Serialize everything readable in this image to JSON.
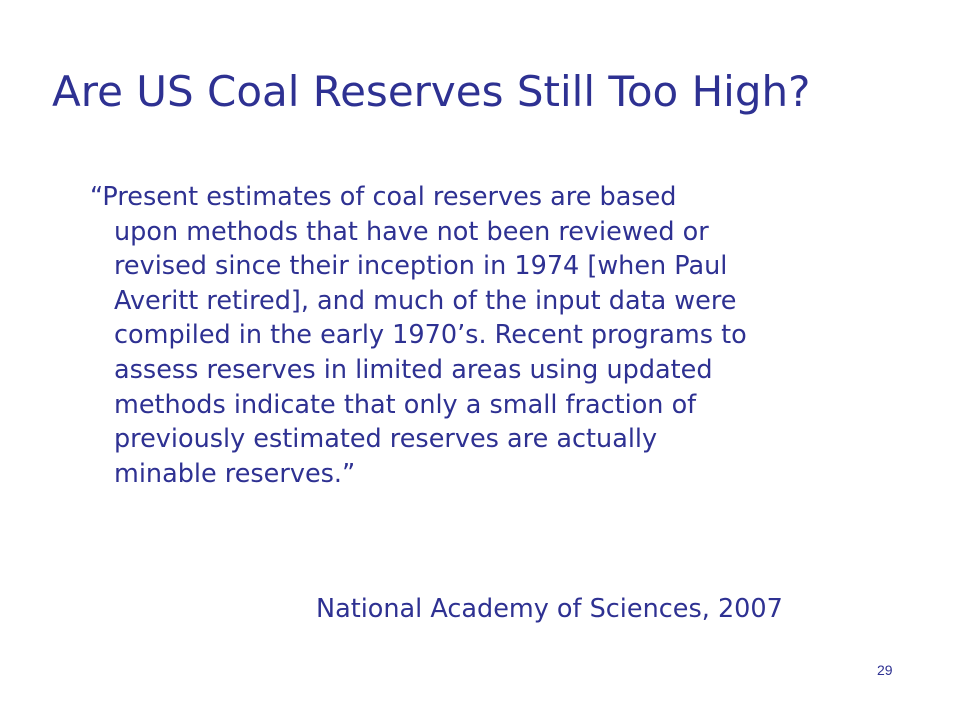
{
  "slide": {
    "title": "Are US Coal Reserves Still Too High?",
    "quote_lines": [
      "“Present estimates of coal reserves are based",
      "upon methods that have not been reviewed or",
      "revised since their inception in 1974 [when Paul",
      "Averitt retired], and much of the input data were",
      "compiled in the early 1970’s. Recent programs to",
      "assess reserves in limited areas using updated",
      "methods indicate that only a small fraction of",
      "previously estimated reserves are actually",
      "minable reserves.”"
    ],
    "attribution": "National Academy of Sciences, 2007",
    "page_number": "29",
    "text_color": "#2e3192",
    "background_color": "#ffffff"
  }
}
